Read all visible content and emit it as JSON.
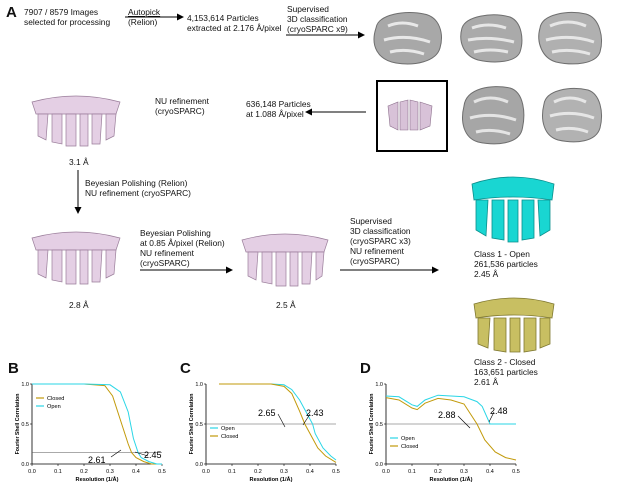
{
  "panels": {
    "a": "A",
    "b": "B",
    "c": "C",
    "d": "D"
  },
  "workflow": {
    "images": [
      "7907 / 8579 Images",
      "selected for processing"
    ],
    "autopick": [
      "Autopick",
      "(Relion)"
    ],
    "extracted": [
      "4,153,614 Particles",
      "extracted at 2.176 Å/pixel"
    ],
    "supervised1": [
      "Supervised",
      "3D classification",
      "(cryoSPARC x9)"
    ],
    "nu1": [
      "NU refinement",
      "(cryoSPARC)"
    ],
    "particles636": [
      "636,148 Particles",
      "at 1.088 Å/pixel"
    ],
    "res1": "3.1 Å",
    "polish1": [
      "Beyesian Polishing (Relion)",
      "NU refinement (cryoSPARC)"
    ],
    "polish2": [
      "Beyesian Polishing",
      "at 0.85 Å/pixel (Relion)",
      "NU refinement",
      "(cryoSPARC)"
    ],
    "res2": "2.8 Å",
    "res3": "2.5 Å",
    "supervised2": [
      "Supervised",
      "3D classification",
      "(cryoSPARC x3)",
      "NU refinement",
      "(cryoSPARC)"
    ],
    "class1": [
      "Class 1 - Open",
      "261,536 particles",
      "2.45 Å"
    ],
    "class2": [
      "Class 2 - Closed",
      "163,651 particles",
      "2.61 Å"
    ]
  },
  "colors": {
    "open": "#2ad6e6",
    "closed": "#c29a0a",
    "class1_map": "#19d6d2",
    "class2_map": "#c8bf62",
    "map_pink": "#e4cfe4",
    "blob": "#a8a8a8"
  },
  "fsc": {
    "ylabel": "Fourier Shell Correlation",
    "xlabel": "Resolution (1/Å)",
    "x_ticks": [
      "0.0",
      "0.1",
      "0.2",
      "0.3",
      "0.4",
      "0.5"
    ],
    "y_ticks": [
      "0.0",
      "0.5",
      "1.0"
    ],
    "b": {
      "legend": [
        "Closed",
        "Open"
      ],
      "annot": [
        "2.61",
        "2.45"
      ]
    },
    "c": {
      "legend": [
        "Open",
        "Closed"
      ],
      "annot": [
        "2.65",
        "2.43"
      ]
    },
    "d": {
      "legend": [
        "Open",
        "Closed"
      ],
      "annot": [
        "2.88",
        "2.48"
      ]
    }
  },
  "chart_data": [
    {
      "type": "line",
      "title": "",
      "xlabel": "Resolution (1/Å)",
      "ylabel": "Fourier Shell Correlation",
      "xlim": [
        0,
        0.5
      ],
      "ylim": [
        0,
        1.0
      ],
      "threshold": 0.143,
      "series": [
        {
          "name": "Closed",
          "x": [
            0.0,
            0.2,
            0.28,
            0.31,
            0.34,
            0.37,
            0.383,
            0.4,
            0.43,
            0.46,
            0.5
          ],
          "y": [
            1.0,
            1.0,
            0.98,
            0.85,
            0.55,
            0.25,
            0.143,
            0.08,
            0.03,
            0.0,
            0.0
          ]
        },
        {
          "name": "Open",
          "x": [
            0.0,
            0.2,
            0.3,
            0.34,
            0.37,
            0.39,
            0.408,
            0.42,
            0.45,
            0.48,
            0.5
          ],
          "y": [
            1.0,
            1.0,
            0.99,
            0.9,
            0.65,
            0.32,
            0.143,
            0.08,
            0.03,
            0.0,
            0.0
          ]
        }
      ],
      "annotations": [
        "2.61",
        "2.45"
      ]
    },
    {
      "type": "line",
      "title": "",
      "xlabel": "Resolution (1/Å)",
      "ylabel": "Fourier Shell Correlation",
      "xlim": [
        0,
        0.5
      ],
      "ylim": [
        0,
        1.0
      ],
      "threshold": 0.5,
      "series": [
        {
          "name": "Open",
          "x": [
            0.05,
            0.25,
            0.3,
            0.33,
            0.36,
            0.39,
            0.41,
            0.42,
            0.45,
            0.48,
            0.5
          ],
          "y": [
            1.0,
            1.0,
            0.99,
            0.93,
            0.8,
            0.62,
            0.5,
            0.38,
            0.2,
            0.1,
            0.05
          ]
        },
        {
          "name": "Closed",
          "x": [
            0.05,
            0.25,
            0.3,
            0.33,
            0.36,
            0.38,
            0.41,
            0.43,
            0.46,
            0.5
          ],
          "y": [
            1.0,
            1.0,
            0.97,
            0.88,
            0.66,
            0.5,
            0.32,
            0.2,
            0.1,
            0.02
          ]
        }
      ],
      "annotations": [
        "2.65",
        "2.43"
      ]
    },
    {
      "type": "line",
      "title": "",
      "xlabel": "Resolution (1/Å)",
      "ylabel": "Fourier Shell Correlation",
      "xlim": [
        0,
        0.5
      ],
      "ylim": [
        0,
        1.0
      ],
      "threshold": 0.5,
      "series": [
        {
          "name": "Open",
          "x": [
            0.0,
            0.05,
            0.1,
            0.12,
            0.15,
            0.2,
            0.25,
            0.3,
            0.35,
            0.37,
            0.4,
            0.45,
            0.5
          ],
          "y": [
            0.85,
            0.84,
            0.74,
            0.72,
            0.8,
            0.86,
            0.85,
            0.84,
            0.78,
            0.72,
            0.5,
            0.5,
            0.5
          ]
        },
        {
          "name": "Closed",
          "x": [
            0.0,
            0.05,
            0.1,
            0.12,
            0.15,
            0.2,
            0.25,
            0.3,
            0.33,
            0.35,
            0.38,
            0.42,
            0.46,
            0.5
          ],
          "y": [
            0.83,
            0.8,
            0.7,
            0.68,
            0.76,
            0.82,
            0.8,
            0.75,
            0.6,
            0.5,
            0.3,
            0.15,
            0.08,
            0.05
          ]
        }
      ],
      "annotations": [
        "2.88",
        "2.48"
      ]
    }
  ]
}
